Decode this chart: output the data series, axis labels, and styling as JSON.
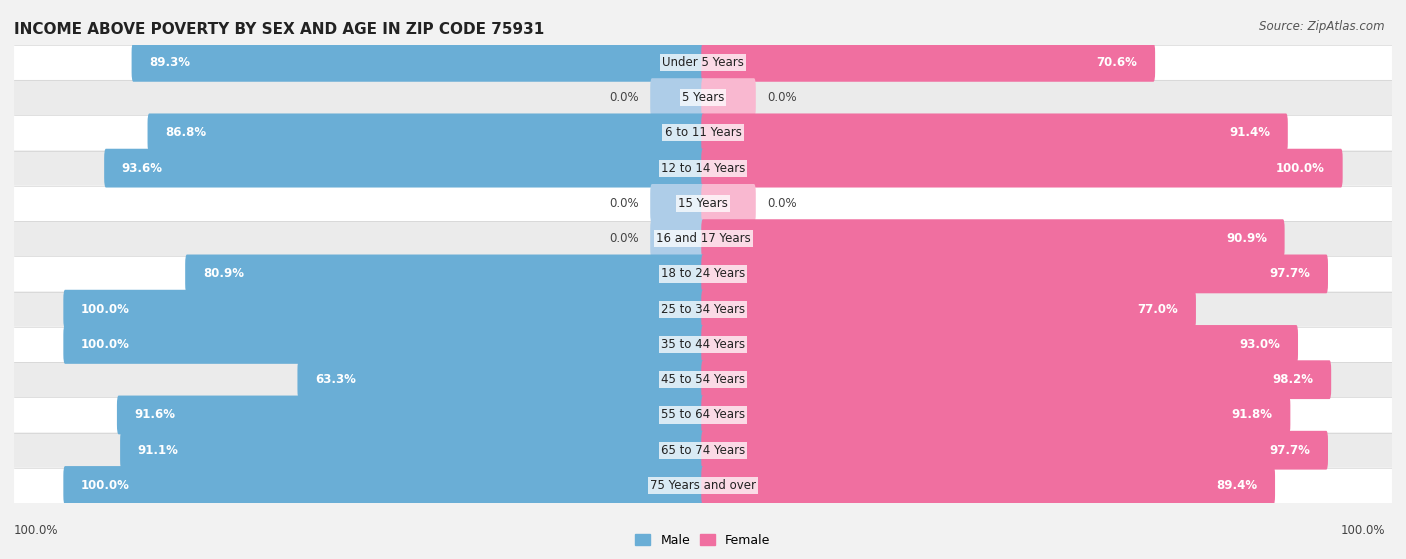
{
  "title": "INCOME ABOVE POVERTY BY SEX AND AGE IN ZIP CODE 75931",
  "source": "Source: ZipAtlas.com",
  "categories": [
    "Under 5 Years",
    "5 Years",
    "6 to 11 Years",
    "12 to 14 Years",
    "15 Years",
    "16 and 17 Years",
    "18 to 24 Years",
    "25 to 34 Years",
    "35 to 44 Years",
    "45 to 54 Years",
    "55 to 64 Years",
    "65 to 74 Years",
    "75 Years and over"
  ],
  "male": [
    89.3,
    0.0,
    86.8,
    93.6,
    0.0,
    0.0,
    80.9,
    100.0,
    100.0,
    63.3,
    91.6,
    91.1,
    100.0
  ],
  "female": [
    70.6,
    0.0,
    91.4,
    100.0,
    0.0,
    90.9,
    97.7,
    77.0,
    93.0,
    98.2,
    91.8,
    97.7,
    89.4
  ],
  "male_color": "#6aaed6",
  "female_color": "#f06fa0",
  "male_light_color": "#aecde8",
  "female_light_color": "#f9b8d0",
  "bg_color": "#f2f2f2",
  "row_light": "#ffffff",
  "row_dark": "#ebebeb",
  "max_val": 100.0,
  "bar_height": 0.55,
  "label_fontsize": 8.5,
  "cat_fontsize": 8.5,
  "title_fontsize": 11,
  "source_fontsize": 8.5
}
